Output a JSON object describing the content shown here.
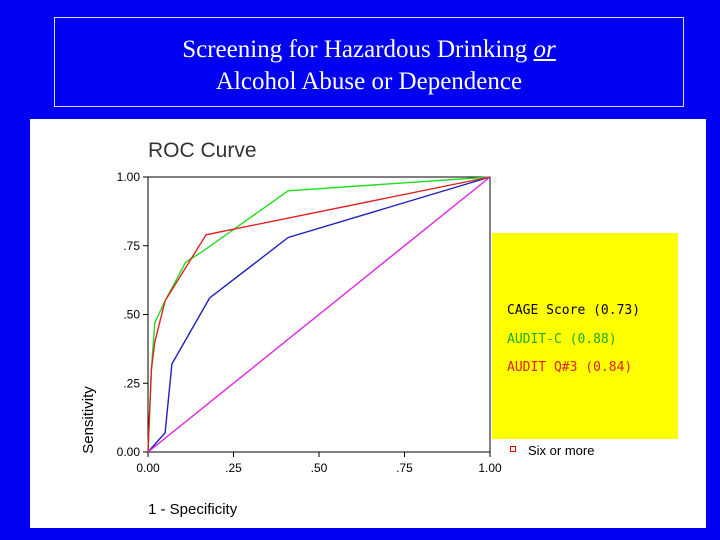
{
  "header": {
    "line1_prefix": "Screening for Hazardous Drinking ",
    "line1_emphasis": "or",
    "line2": "Alcohol Abuse or Dependence"
  },
  "chart_data": {
    "type": "line",
    "title": "ROC Curve",
    "xlabel": "1 - Specificity",
    "ylabel": "Sensitivity",
    "xlim": [
      0,
      1
    ],
    "ylim": [
      0,
      1
    ],
    "xticks": [
      0,
      0.25,
      0.5,
      0.75,
      1
    ],
    "xtick_labels": [
      "0.00",
      ".25",
      ".50",
      ".75",
      "1.00"
    ],
    "yticks": [
      0,
      0.25,
      0.5,
      0.75,
      1
    ],
    "ytick_labels": [
      "0.00",
      ".25",
      ".50",
      ".75",
      "1.00"
    ],
    "grid": false,
    "series": [
      {
        "name": "CAGE Score (0.73)",
        "color": "#2020c0",
        "x": [
          0,
          0.05,
          0.07,
          0.18,
          0.41,
          1.0
        ],
        "y": [
          0,
          0.07,
          0.32,
          0.56,
          0.78,
          1.0
        ]
      },
      {
        "name": "AUDIT-C (0.88)",
        "color": "#22dd22",
        "x": [
          0,
          0.01,
          0.02,
          0.05,
          0.11,
          0.16,
          0.41,
          1.0
        ],
        "y": [
          0,
          0.3,
          0.47,
          0.55,
          0.69,
          0.73,
          0.95,
          1.0
        ]
      },
      {
        "name": "AUDIT Q#3 (0.84)",
        "color": "#dd2222",
        "x": [
          0,
          0.005,
          0.01,
          0.02,
          0.05,
          0.17,
          1.0
        ],
        "y": [
          0,
          0.15,
          0.3,
          0.4,
          0.55,
          0.79,
          1.0
        ]
      },
      {
        "name": "",
        "color": "#dd22dd",
        "reference": true,
        "x": [
          0,
          1
        ],
        "y": [
          0,
          1
        ]
      }
    ],
    "legend": {
      "placement": "right",
      "background": "#ffff00",
      "items": [
        {
          "label": "CAGE Score (0.73)",
          "color": "#000000"
        },
        {
          "label": "AUDIT-C (0.88)",
          "color": "#22aa22"
        },
        {
          "label": "AUDIT Q#3 (0.84)",
          "color": "#dd2222"
        }
      ],
      "extra_item": {
        "label": "Six or more",
        "color": "#e00000"
      }
    }
  }
}
